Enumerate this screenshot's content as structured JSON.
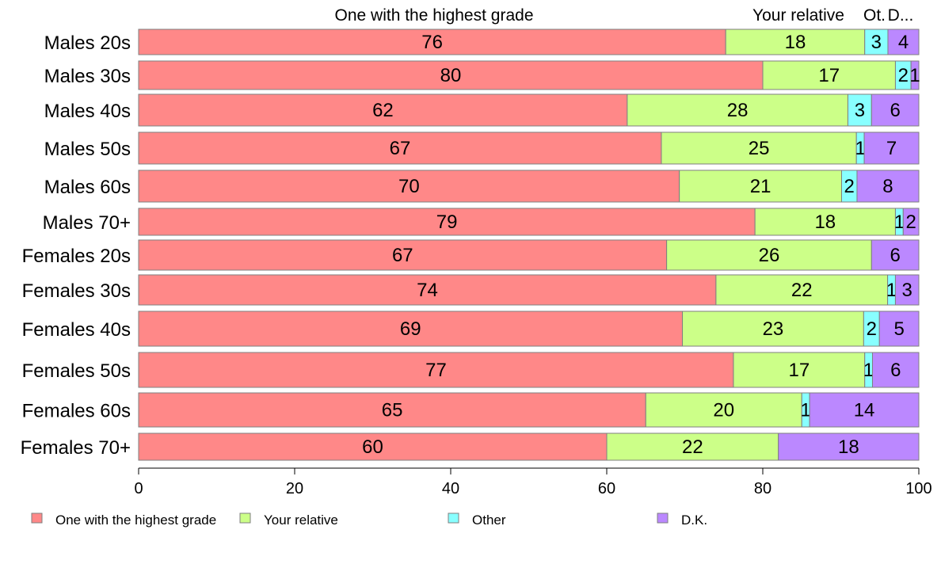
{
  "chart_data": {
    "type": "bar",
    "orientation": "horizontal",
    "stacked": true,
    "categories": [
      "Males 20s",
      "Males 30s",
      "Males 40s",
      "Males 50s",
      "Males 60s",
      "Males 70+",
      "Females 20s",
      "Females 30s",
      "Females 40s",
      "Females 50s",
      "Females 60s",
      "Females 70+"
    ],
    "series": [
      {
        "name": "One with the highest grade",
        "color": "#ff8888",
        "values": [
          76,
          80,
          62,
          67,
          70,
          79,
          67,
          74,
          69,
          77,
          65,
          60
        ]
      },
      {
        "name": "Your relative",
        "color": "#ccff88",
        "values": [
          18,
          17,
          28,
          25,
          21,
          18,
          26,
          22,
          23,
          17,
          20,
          22
        ]
      },
      {
        "name": "Other",
        "color": "#88ffff",
        "values": [
          3,
          2,
          3,
          1,
          2,
          1,
          0,
          1,
          2,
          1,
          1,
          0
        ]
      },
      {
        "name": "D.K.",
        "color": "#bb88ff",
        "values": [
          4,
          1,
          6,
          7,
          8,
          2,
          6,
          3,
          5,
          6,
          14,
          18
        ]
      }
    ],
    "top_labels": [
      "One with the highest grade",
      "Your relative",
      "Ot.",
      "D..."
    ],
    "xlim": [
      0,
      100
    ],
    "xticks": [
      "0",
      "20",
      "40",
      "60",
      "80",
      "100"
    ],
    "grid": false,
    "legend_position": "bottom",
    "title": "",
    "xlabel": "",
    "ylabel": ""
  }
}
